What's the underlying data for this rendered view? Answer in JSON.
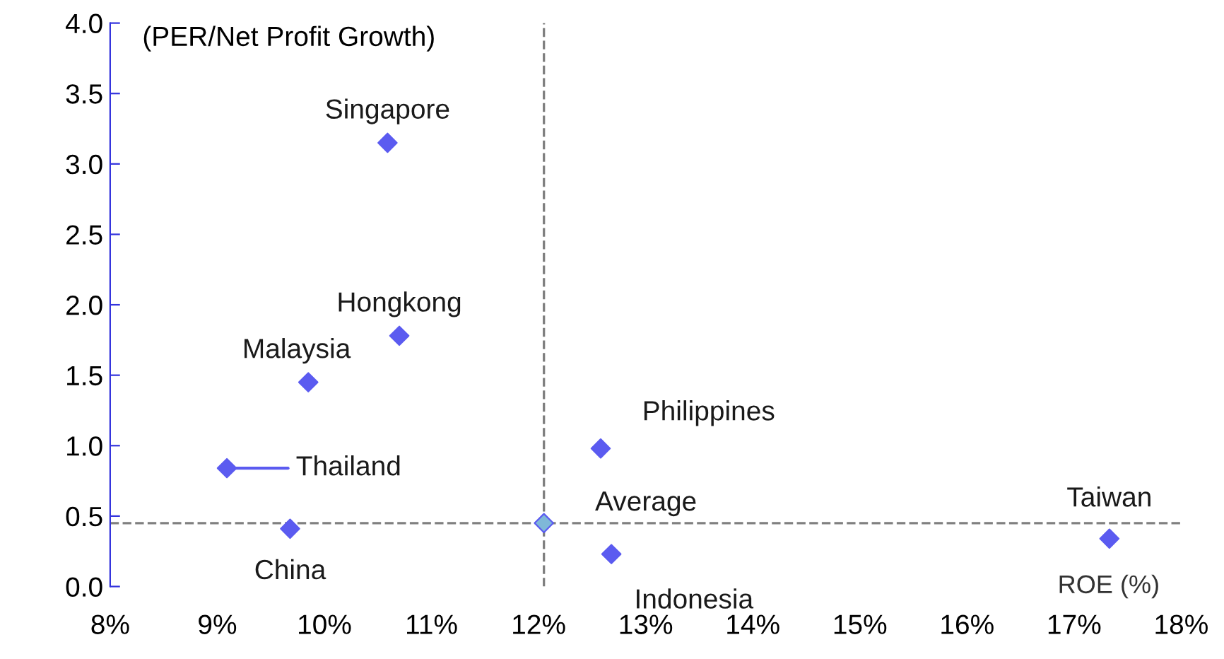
{
  "chart_data": {
    "type": "scatter",
    "xlabel": "ROE (%)",
    "ylabel": "(PER/Net Profit Growth)",
    "x": [
      10.59,
      10.7,
      9.85,
      9.09,
      9.68,
      12.05,
      12.58,
      12.68,
      17.33
    ],
    "values": [
      3.15,
      1.78,
      1.45,
      0.84,
      0.41,
      0.45,
      0.98,
      0.23,
      0.34
    ],
    "colors": [
      "#5b5bf0",
      "#5b5bf0",
      "#5b5bf0",
      "#5b5bf0",
      "#5b5bf0",
      "#7fb8d8",
      "#5b5bf0",
      "#5b5bf0",
      "#5b5bf0"
    ],
    "marker": "diamond",
    "annotations": [
      {
        "text": "Singapore",
        "x": 10.59,
        "y": 3.15
      },
      {
        "text": "Hongkong",
        "x": 10.7,
        "y": 1.78
      },
      {
        "text": "Malaysia",
        "x": 9.85,
        "y": 1.45
      },
      {
        "text": "Thailand",
        "x": 9.09,
        "y": 0.84
      },
      {
        "text": "China",
        "x": 9.68,
        "y": 0.41
      },
      {
        "text": "Average",
        "x": 12.05,
        "y": 0.45
      },
      {
        "text": "Philippines",
        "x": 12.58,
        "y": 0.98
      },
      {
        "text": "Indonesia",
        "x": 12.68,
        "y": 0.23
      },
      {
        "text": "Taiwan",
        "x": 17.33,
        "y": 0.34
      }
    ],
    "ref_lines": [
      {
        "axis": "x",
        "value": 12.05,
        "color": "#808080",
        "line_style": "dashed"
      },
      {
        "axis": "y",
        "value": 0.45,
        "color": "#808080",
        "line_style": "dashed"
      }
    ],
    "xlim": [
      8,
      18
    ],
    "ylim": [
      0,
      4
    ],
    "xticks": [
      {
        "value": 8,
        "label": "8%"
      },
      {
        "value": 9,
        "label": "9%"
      },
      {
        "value": 10,
        "label": "10%"
      },
      {
        "value": 11,
        "label": "11%"
      },
      {
        "value": 12,
        "label": "12%"
      },
      {
        "value": 13,
        "label": "13%"
      },
      {
        "value": 14,
        "label": "14%"
      },
      {
        "value": 15,
        "label": "15%"
      },
      {
        "value": 16,
        "label": "16%"
      },
      {
        "value": 17,
        "label": "17%"
      },
      {
        "value": 18,
        "label": "18%"
      }
    ],
    "yticks": [
      {
        "value": 0,
        "label": "0.0"
      },
      {
        "value": 0.5,
        "label": "0.5"
      },
      {
        "value": 1,
        "label": "1.0"
      },
      {
        "value": 1.5,
        "label": "1.5"
      },
      {
        "value": 2,
        "label": "2.0"
      },
      {
        "value": 2.5,
        "label": "2.5"
      },
      {
        "value": 3,
        "label": "3.0"
      },
      {
        "value": 3.5,
        "label": "3.5"
      },
      {
        "value": 4,
        "label": "4.0"
      }
    ],
    "grid": false,
    "legend": false
  }
}
